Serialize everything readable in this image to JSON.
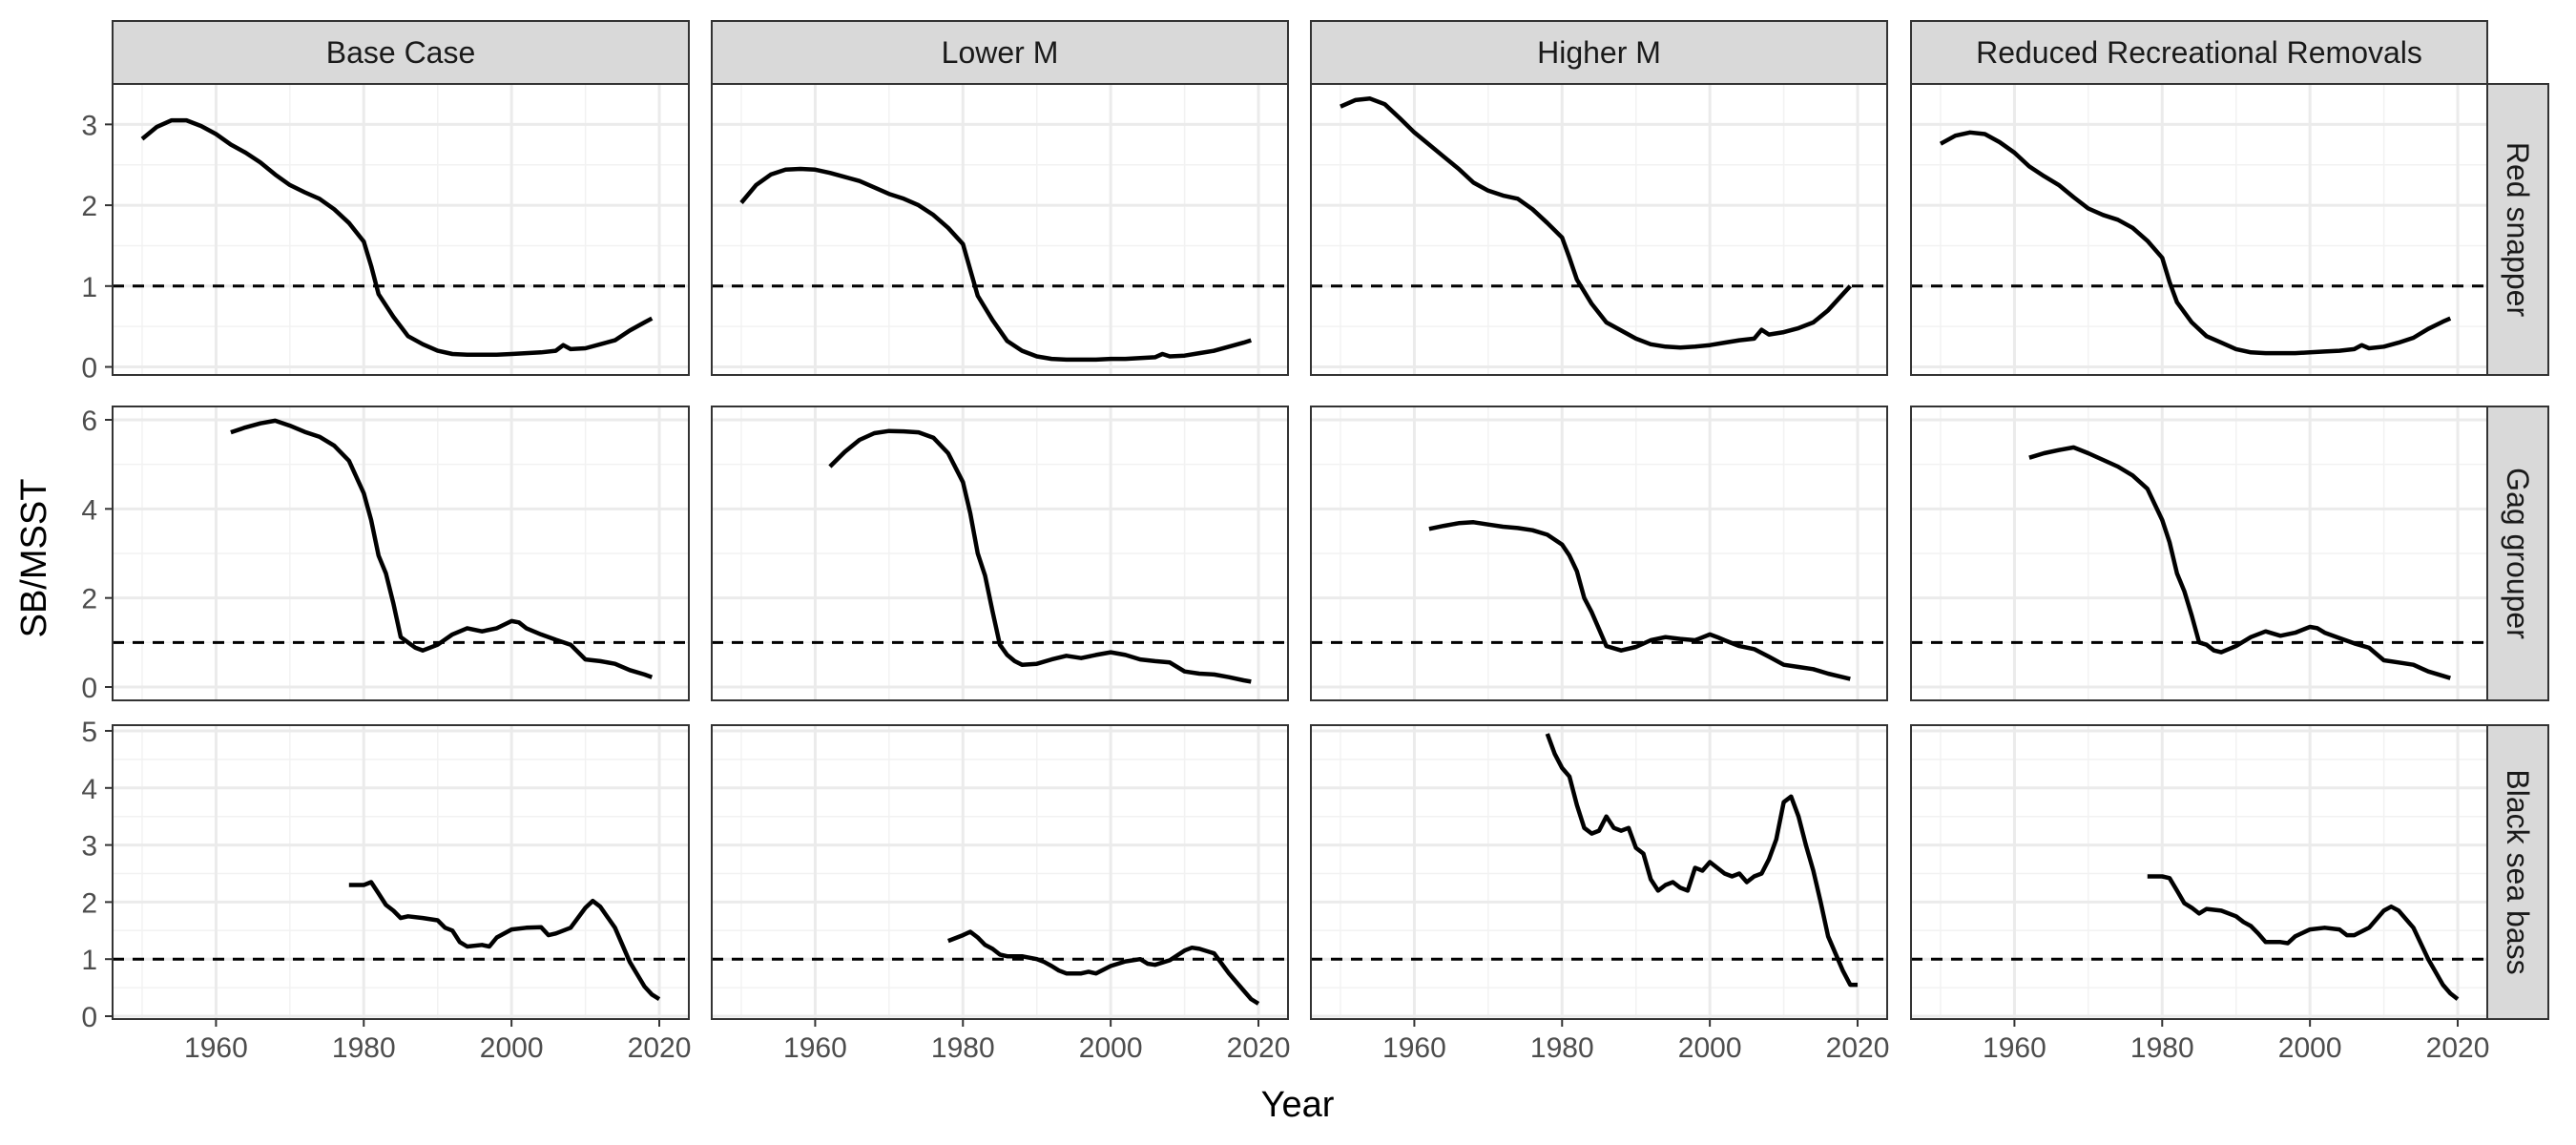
{
  "chart_data": {
    "type": "line",
    "xlabel": "Year",
    "ylabel": "SB/MSST",
    "columns": [
      "Base Case",
      "Lower M",
      "Higher M",
      "Reduced Recreational Removals"
    ],
    "rows": [
      "Red snapper",
      "Gag grouper",
      "Black sea bass"
    ],
    "xlim": [
      1946,
      2024
    ],
    "x_ticks": [
      1960,
      1980,
      2000,
      2020
    ],
    "row_axes": [
      {
        "ylim": [
          -0.1,
          3.5
        ],
        "y_ticks": [
          0,
          1,
          2,
          3
        ]
      },
      {
        "ylim": [
          -0.3,
          6.3
        ],
        "y_ticks": [
          0,
          2,
          4,
          6
        ]
      },
      {
        "ylim": [
          -0.05,
          5.1
        ],
        "y_ticks": [
          0,
          1,
          2,
          3,
          4,
          5
        ]
      }
    ],
    "reference_line": {
      "y": 1,
      "style": "dashed"
    },
    "grid": true,
    "series": [
      {
        "row": 0,
        "col": 0,
        "x": [
          1950,
          1952,
          1954,
          1956,
          1958,
          1960,
          1962,
          1964,
          1966,
          1968,
          1970,
          1972,
          1974,
          1976,
          1978,
          1980,
          1981,
          1982,
          1984,
          1986,
          1988,
          1990,
          1992,
          1994,
          1996,
          1998,
          2000,
          2002,
          2004,
          2006,
          2007,
          2008,
          2010,
          2012,
          2014,
          2016,
          2018,
          2019
        ],
        "y": [
          2.82,
          2.97,
          3.05,
          3.05,
          2.98,
          2.88,
          2.75,
          2.65,
          2.53,
          2.38,
          2.25,
          2.16,
          2.08,
          1.95,
          1.78,
          1.55,
          1.25,
          0.9,
          0.62,
          0.38,
          0.28,
          0.2,
          0.16,
          0.15,
          0.15,
          0.15,
          0.16,
          0.17,
          0.18,
          0.2,
          0.27,
          0.22,
          0.23,
          0.28,
          0.33,
          0.45,
          0.55,
          0.6
        ]
      },
      {
        "row": 0,
        "col": 1,
        "x": [
          1950,
          1952,
          1954,
          1956,
          1958,
          1960,
          1962,
          1964,
          1966,
          1968,
          1970,
          1972,
          1974,
          1976,
          1978,
          1980,
          1981,
          1982,
          1984,
          1986,
          1988,
          1990,
          1992,
          1994,
          1996,
          1998,
          2000,
          2002,
          2004,
          2006,
          2007,
          2008,
          2010,
          2012,
          2014,
          2016,
          2018,
          2019
        ],
        "y": [
          2.03,
          2.25,
          2.38,
          2.44,
          2.45,
          2.44,
          2.4,
          2.35,
          2.3,
          2.22,
          2.14,
          2.08,
          2.0,
          1.88,
          1.72,
          1.52,
          1.2,
          0.88,
          0.58,
          0.32,
          0.2,
          0.13,
          0.1,
          0.09,
          0.09,
          0.09,
          0.1,
          0.1,
          0.11,
          0.12,
          0.16,
          0.13,
          0.14,
          0.17,
          0.2,
          0.25,
          0.3,
          0.33
        ]
      },
      {
        "row": 0,
        "col": 2,
        "x": [
          1950,
          1952,
          1954,
          1956,
          1958,
          1960,
          1962,
          1964,
          1966,
          1968,
          1970,
          1972,
          1974,
          1976,
          1978,
          1980,
          1981,
          1982,
          1984,
          1986,
          1988,
          1990,
          1992,
          1994,
          1996,
          1998,
          2000,
          2002,
          2004,
          2006,
          2007,
          2008,
          2010,
          2012,
          2014,
          2016,
          2018,
          2019
        ],
        "y": [
          3.22,
          3.3,
          3.32,
          3.25,
          3.08,
          2.9,
          2.75,
          2.6,
          2.45,
          2.28,
          2.18,
          2.12,
          2.08,
          1.95,
          1.78,
          1.6,
          1.35,
          1.08,
          0.78,
          0.55,
          0.45,
          0.35,
          0.28,
          0.25,
          0.24,
          0.25,
          0.27,
          0.3,
          0.33,
          0.35,
          0.46,
          0.4,
          0.43,
          0.48,
          0.55,
          0.7,
          0.9,
          1.0
        ]
      },
      {
        "row": 0,
        "col": 3,
        "x": [
          1950,
          1952,
          1954,
          1956,
          1958,
          1960,
          1962,
          1964,
          1966,
          1968,
          1970,
          1972,
          1974,
          1976,
          1978,
          1980,
          1981,
          1982,
          1984,
          1986,
          1988,
          1990,
          1992,
          1994,
          1996,
          1998,
          2000,
          2002,
          2004,
          2006,
          2007,
          2008,
          2010,
          2012,
          2014,
          2016,
          2018,
          2019
        ],
        "y": [
          2.76,
          2.86,
          2.9,
          2.88,
          2.78,
          2.65,
          2.48,
          2.36,
          2.25,
          2.1,
          1.96,
          1.88,
          1.82,
          1.72,
          1.56,
          1.35,
          1.05,
          0.8,
          0.55,
          0.38,
          0.3,
          0.22,
          0.18,
          0.17,
          0.17,
          0.17,
          0.18,
          0.19,
          0.2,
          0.22,
          0.27,
          0.23,
          0.25,
          0.3,
          0.36,
          0.47,
          0.56,
          0.6
        ]
      },
      {
        "row": 1,
        "col": 0,
        "x": [
          1962,
          1964,
          1966,
          1968,
          1970,
          1972,
          1974,
          1976,
          1978,
          1980,
          1981,
          1982,
          1983,
          1984,
          1985,
          1986,
          1987,
          1988,
          1990,
          1992,
          1994,
          1996,
          1998,
          2000,
          2001,
          2002,
          2004,
          2006,
          2008,
          2010,
          2012,
          2014,
          2016,
          2018,
          2019
        ],
        "y": [
          5.72,
          5.83,
          5.92,
          5.98,
          5.87,
          5.73,
          5.62,
          5.42,
          5.08,
          4.35,
          3.75,
          2.95,
          2.55,
          1.88,
          1.12,
          1.0,
          0.88,
          0.82,
          0.95,
          1.18,
          1.32,
          1.25,
          1.32,
          1.48,
          1.45,
          1.32,
          1.18,
          1.06,
          0.95,
          0.62,
          0.58,
          0.52,
          0.38,
          0.28,
          0.22
        ]
      },
      {
        "row": 1,
        "col": 1,
        "x": [
          1962,
          1964,
          1966,
          1968,
          1970,
          1972,
          1974,
          1976,
          1978,
          1980,
          1981,
          1982,
          1983,
          1984,
          1985,
          1986,
          1987,
          1988,
          1990,
          1992,
          1994,
          1996,
          1998,
          2000,
          2002,
          2004,
          2006,
          2008,
          2010,
          2012,
          2014,
          2016,
          2018,
          2019
        ],
        "y": [
          4.95,
          5.28,
          5.55,
          5.7,
          5.75,
          5.74,
          5.72,
          5.6,
          5.25,
          4.6,
          3.9,
          3.0,
          2.5,
          1.7,
          0.95,
          0.72,
          0.58,
          0.5,
          0.52,
          0.62,
          0.7,
          0.65,
          0.72,
          0.78,
          0.72,
          0.62,
          0.58,
          0.55,
          0.35,
          0.3,
          0.28,
          0.22,
          0.15,
          0.12
        ]
      },
      {
        "row": 1,
        "col": 2,
        "x": [
          1962,
          1964,
          1966,
          1968,
          1970,
          1972,
          1974,
          1976,
          1978,
          1980,
          1981,
          1982,
          1983,
          1984,
          1985,
          1986,
          1988,
          1990,
          1992,
          1994,
          1996,
          1998,
          2000,
          2001,
          2002,
          2004,
          2006,
          2008,
          2010,
          2012,
          2014,
          2016,
          2018,
          2019
        ],
        "y": [
          3.55,
          3.62,
          3.68,
          3.7,
          3.65,
          3.6,
          3.57,
          3.52,
          3.42,
          3.2,
          2.95,
          2.6,
          2.0,
          1.68,
          1.3,
          0.92,
          0.82,
          0.9,
          1.05,
          1.12,
          1.08,
          1.05,
          1.18,
          1.12,
          1.05,
          0.92,
          0.85,
          0.68,
          0.5,
          0.45,
          0.4,
          0.3,
          0.22,
          0.18
        ]
      },
      {
        "row": 1,
        "col": 3,
        "x": [
          1962,
          1964,
          1966,
          1968,
          1970,
          1972,
          1974,
          1976,
          1978,
          1980,
          1981,
          1982,
          1983,
          1984,
          1985,
          1986,
          1987,
          1988,
          1990,
          1992,
          1994,
          1996,
          1998,
          2000,
          2001,
          2002,
          2004,
          2006,
          2008,
          2010,
          2012,
          2014,
          2016,
          2018,
          2019
        ],
        "y": [
          5.15,
          5.25,
          5.32,
          5.38,
          5.25,
          5.1,
          4.95,
          4.75,
          4.45,
          3.75,
          3.25,
          2.55,
          2.15,
          1.6,
          1.0,
          0.95,
          0.82,
          0.78,
          0.92,
          1.12,
          1.25,
          1.15,
          1.22,
          1.35,
          1.32,
          1.22,
          1.1,
          0.98,
          0.88,
          0.6,
          0.55,
          0.5,
          0.35,
          0.25,
          0.2
        ]
      },
      {
        "row": 2,
        "col": 0,
        "x": [
          1978,
          1980,
          1981,
          1982,
          1983,
          1984,
          1985,
          1986,
          1988,
          1990,
          1991,
          1992,
          1993,
          1994,
          1996,
          1997,
          1998,
          2000,
          2002,
          2004,
          2005,
          2006,
          2008,
          2010,
          2011,
          2012,
          2014,
          2016,
          2018,
          2019,
          2020
        ],
        "y": [
          2.3,
          2.3,
          2.35,
          2.15,
          1.95,
          1.85,
          1.72,
          1.75,
          1.72,
          1.68,
          1.55,
          1.5,
          1.3,
          1.22,
          1.25,
          1.22,
          1.38,
          1.52,
          1.55,
          1.56,
          1.42,
          1.45,
          1.55,
          1.9,
          2.02,
          1.92,
          1.55,
          0.95,
          0.52,
          0.38,
          0.3
        ]
      },
      {
        "row": 2,
        "col": 1,
        "x": [
          1978,
          1980,
          1981,
          1982,
          1983,
          1984,
          1985,
          1986,
          1988,
          1990,
          1991,
          1992,
          1993,
          1994,
          1996,
          1997,
          1998,
          2000,
          2002,
          2004,
          2005,
          2006,
          2008,
          2010,
          2011,
          2012,
          2014,
          2016,
          2018,
          2019,
          2020
        ],
        "y": [
          1.32,
          1.42,
          1.48,
          1.38,
          1.25,
          1.18,
          1.08,
          1.05,
          1.05,
          1.0,
          0.95,
          0.88,
          0.8,
          0.75,
          0.75,
          0.78,
          0.75,
          0.88,
          0.96,
          1.0,
          0.92,
          0.9,
          0.98,
          1.15,
          1.2,
          1.18,
          1.1,
          0.75,
          0.45,
          0.3,
          0.22
        ]
      },
      {
        "row": 2,
        "col": 2,
        "x": [
          1978,
          1979,
          1980,
          1981,
          1982,
          1983,
          1984,
          1985,
          1986,
          1987,
          1988,
          1989,
          1990,
          1991,
          1992,
          1993,
          1994,
          1995,
          1996,
          1997,
          1998,
          1999,
          2000,
          2001,
          2002,
          2003,
          2004,
          2005,
          2006,
          2007,
          2008,
          2009,
          2010,
          2011,
          2012,
          2013,
          2014,
          2015,
          2016,
          2017,
          2018,
          2019,
          2020
        ],
        "y": [
          4.95,
          4.6,
          4.35,
          4.2,
          3.7,
          3.3,
          3.2,
          3.25,
          3.5,
          3.3,
          3.25,
          3.3,
          2.95,
          2.85,
          2.4,
          2.2,
          2.3,
          2.35,
          2.25,
          2.2,
          2.6,
          2.55,
          2.7,
          2.6,
          2.5,
          2.45,
          2.5,
          2.35,
          2.45,
          2.5,
          2.75,
          3.1,
          3.75,
          3.85,
          3.5,
          3.0,
          2.55,
          2.0,
          1.4,
          1.1,
          0.8,
          0.55,
          0.55
        ]
      },
      {
        "row": 2,
        "col": 3,
        "x": [
          1978,
          1980,
          1981,
          1982,
          1983,
          1984,
          1985,
          1986,
          1988,
          1990,
          1991,
          1992,
          1993,
          1994,
          1996,
          1997,
          1998,
          2000,
          2002,
          2004,
          2005,
          2006,
          2008,
          2010,
          2011,
          2012,
          2014,
          2016,
          2018,
          2019,
          2020
        ],
        "y": [
          2.45,
          2.45,
          2.42,
          2.2,
          1.98,
          1.9,
          1.8,
          1.88,
          1.85,
          1.75,
          1.65,
          1.58,
          1.45,
          1.3,
          1.3,
          1.28,
          1.4,
          1.52,
          1.55,
          1.52,
          1.42,
          1.42,
          1.55,
          1.85,
          1.92,
          1.85,
          1.55,
          1.0,
          0.55,
          0.4,
          0.3
        ]
      }
    ]
  }
}
